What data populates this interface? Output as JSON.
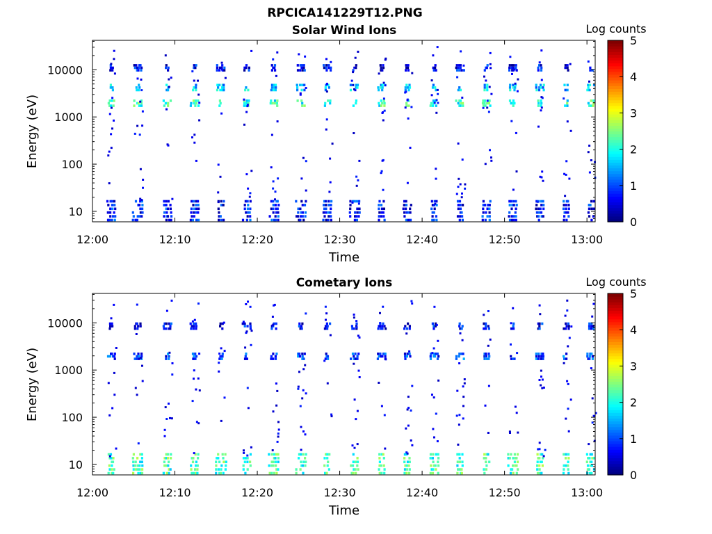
{
  "figure": {
    "title": "RPCICA141229T12.PNG"
  },
  "chart_data": [
    {
      "type": "heatmap",
      "title": "Solar Wind Ions",
      "xlabel": "Time",
      "ylabel": "Energy (eV)",
      "x_tick_labels": [
        "12:00",
        "12:10",
        "12:20",
        "12:30",
        "12:40",
        "12:50",
        "13:00"
      ],
      "x_ticks_minutes": [
        0,
        10,
        20,
        30,
        40,
        50,
        60
      ],
      "xlim_minutes": [
        0,
        61
      ],
      "y_scale": "log",
      "y_tick_labels": [
        "10",
        "100",
        "1000",
        "10000"
      ],
      "y_ticks": [
        10,
        100,
        1000,
        10000
      ],
      "ylim": [
        6,
        42000
      ],
      "colorbar": {
        "label": "Log counts",
        "ticks": [
          "0",
          "1",
          "2",
          "3",
          "4",
          "5"
        ],
        "range": [
          0,
          5
        ],
        "colormap": "jet"
      },
      "bursts_minutes": [
        2.3,
        5.5,
        9.1,
        12.4,
        15.6,
        18.7,
        22.0,
        25.3,
        28.5,
        31.8,
        35.1,
        38.2,
        41.5,
        44.6,
        47.8,
        51.0,
        54.3,
        57.5,
        60.5
      ],
      "bands": [
        {
          "energy_eV": 1950,
          "level": 2.1
        },
        {
          "energy_eV": 4200,
          "level": 1.6
        },
        {
          "energy_eV": 11000,
          "level": 0.6
        },
        {
          "energy_eV": 10,
          "level": 0.7
        }
      ]
    },
    {
      "type": "heatmap",
      "title": "Cometary Ions",
      "xlabel": "Time",
      "ylabel": "Energy (eV)",
      "x_tick_labels": [
        "12:00",
        "12:10",
        "12:20",
        "12:30",
        "12:40",
        "12:50",
        "13:00"
      ],
      "x_ticks_minutes": [
        0,
        10,
        20,
        30,
        40,
        50,
        60
      ],
      "xlim_minutes": [
        0,
        61
      ],
      "y_scale": "log",
      "y_tick_labels": [
        "10",
        "100",
        "1000",
        "10000"
      ],
      "y_ticks": [
        10,
        100,
        1000,
        10000
      ],
      "ylim": [
        6,
        42000
      ],
      "colorbar": {
        "label": "Log counts",
        "ticks": [
          "0",
          "1",
          "2",
          "3",
          "4",
          "5"
        ],
        "range": [
          0,
          5
        ],
        "colormap": "jet"
      },
      "bursts_minutes": [
        2.3,
        5.5,
        9.1,
        12.4,
        15.6,
        18.7,
        22.0,
        25.3,
        28.5,
        31.8,
        35.1,
        38.2,
        41.5,
        44.6,
        47.8,
        51.0,
        54.3,
        57.5,
        60.5
      ],
      "bands": [
        {
          "energy_eV": 10,
          "level": 2.2
        },
        {
          "energy_eV": 1950,
          "level": 0.9
        },
        {
          "energy_eV": 8500,
          "level": 0.6
        }
      ]
    }
  ]
}
